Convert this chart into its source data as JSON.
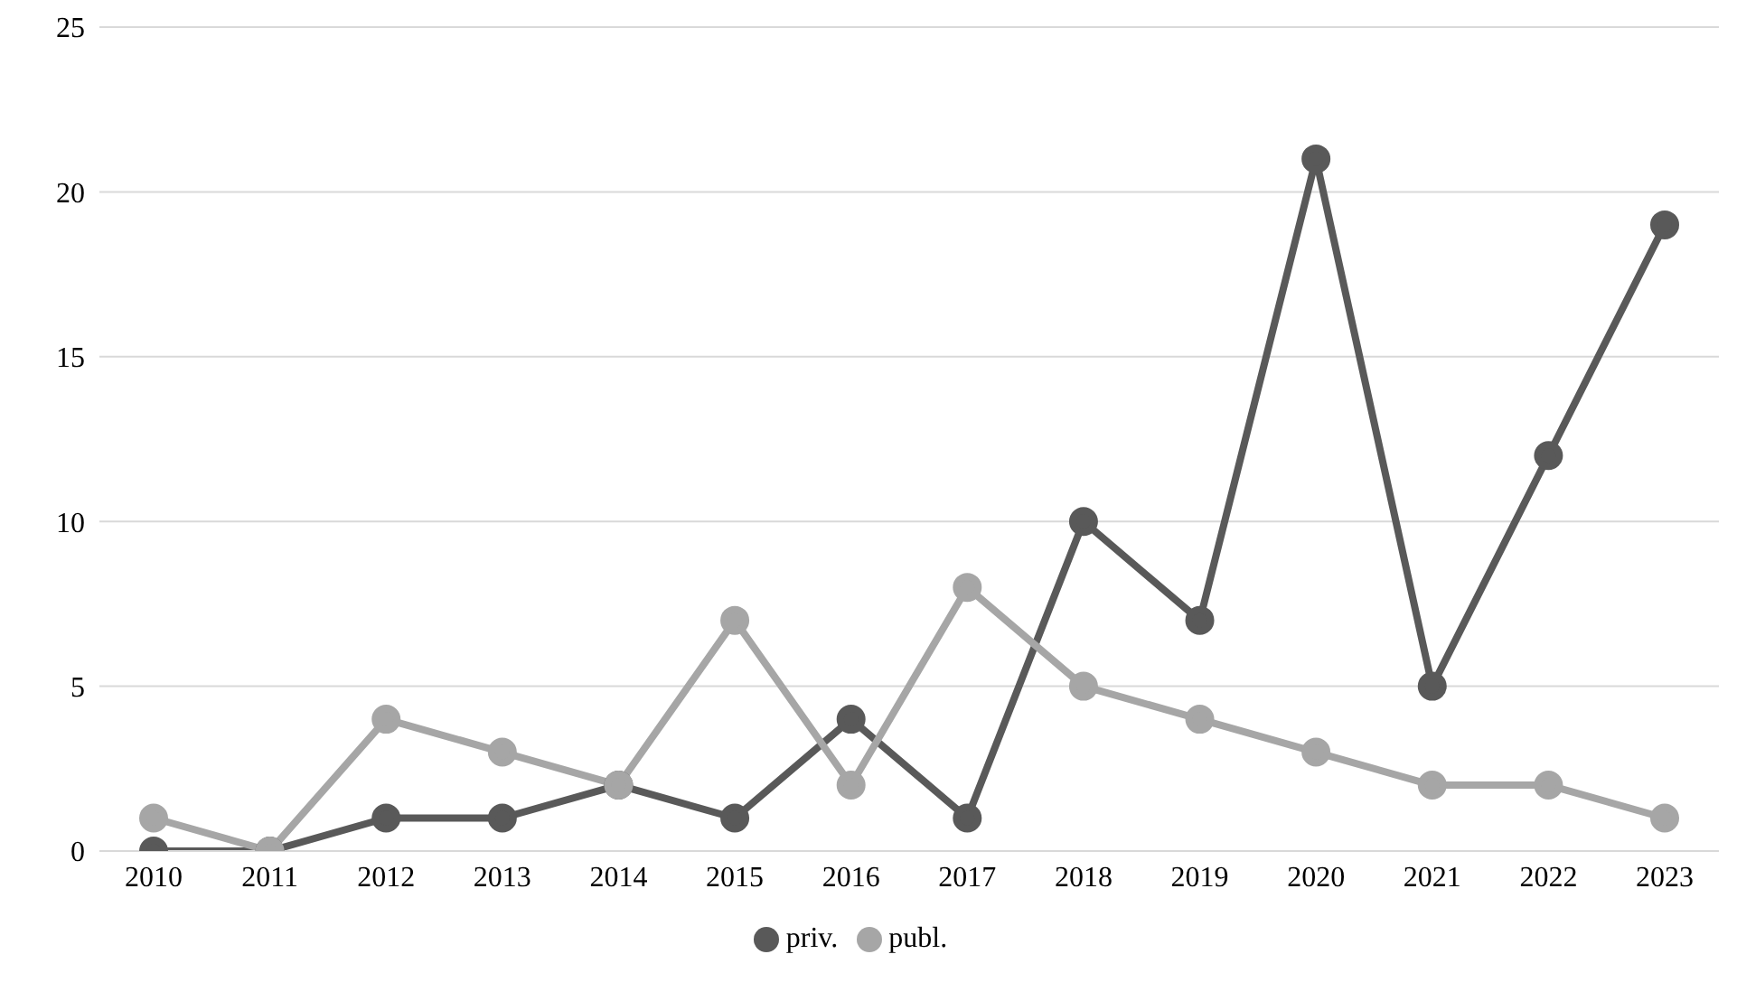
{
  "chart_data": {
    "type": "line",
    "categories": [
      "2010",
      "2011",
      "2012",
      "2013",
      "2014",
      "2015",
      "2016",
      "2017",
      "2018",
      "2019",
      "2020",
      "2021",
      "2022",
      "2023"
    ],
    "series": [
      {
        "name": "priv.",
        "color": "#595959",
        "values": [
          0,
          0,
          1,
          1,
          2,
          1,
          4,
          1,
          10,
          7,
          21,
          5,
          12,
          19
        ]
      },
      {
        "name": "publ.",
        "color": "#a6a6a6",
        "values": [
          1,
          0,
          4,
          3,
          2,
          7,
          2,
          8,
          5,
          4,
          3,
          2,
          2,
          1
        ]
      }
    ],
    "ylim": [
      0,
      25
    ],
    "yticks": [
      0,
      5,
      10,
      15,
      20,
      25
    ],
    "grid": "y",
    "legend": "bottom",
    "marker": "circle",
    "line_style": "solid"
  }
}
